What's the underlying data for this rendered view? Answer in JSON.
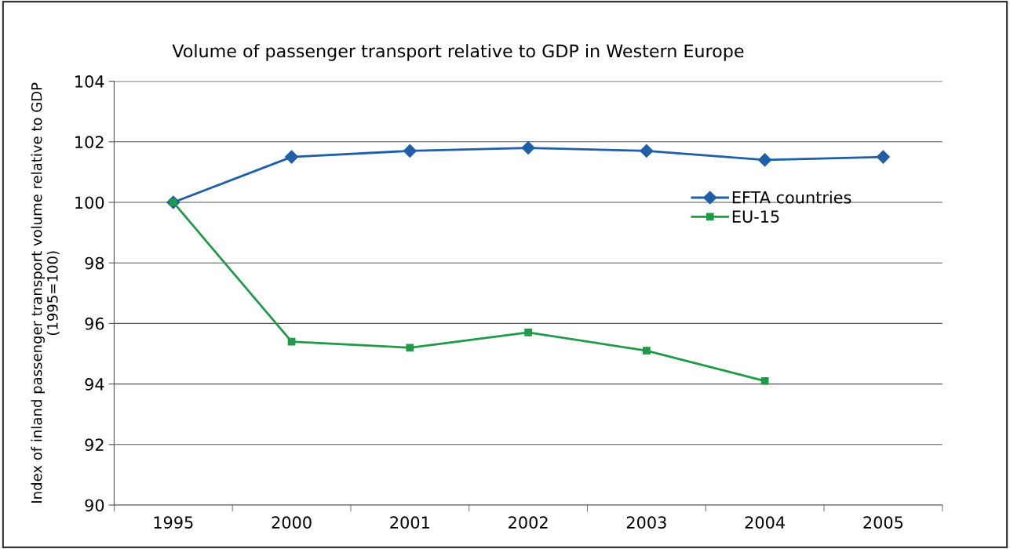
{
  "chart_data": {
    "type": "line",
    "title": "Volume of passenger transport relative to GDP in Western Europe",
    "ylabel": "Index of inland passenger transport volume relative to GDP\n(1995=100)",
    "categories": [
      "1995",
      "2000",
      "2001",
      "2002",
      "2003",
      "2004",
      "2005"
    ],
    "series": [
      {
        "name": "EFTA countries",
        "color": "#1f5fa8",
        "marker": "diamond",
        "values": [
          100,
          101.5,
          101.7,
          101.8,
          101.7,
          101.4,
          101.5
        ]
      },
      {
        "name": "EU-15",
        "color": "#1e9a48",
        "marker": "square",
        "values": [
          100,
          95.4,
          95.2,
          95.7,
          95.1,
          94.1,
          null
        ]
      }
    ],
    "ylim": [
      90,
      104
    ],
    "yticks": [
      90,
      92,
      94,
      96,
      98,
      100,
      102,
      104
    ],
    "grid": "y",
    "legend": "right",
    "line_style": "solid"
  }
}
